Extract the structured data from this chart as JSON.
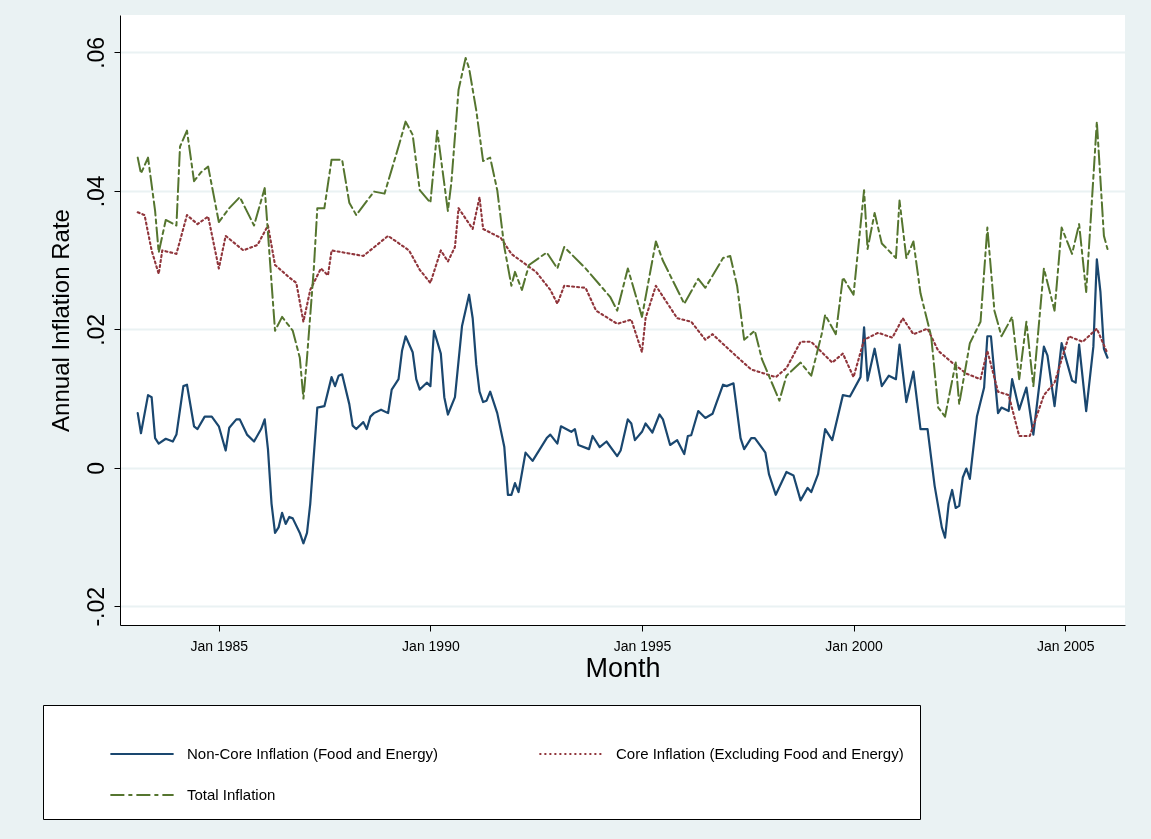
{
  "chart_data": {
    "type": "line",
    "xlabel": "Month",
    "ylabel": "Annual Inflation Rate",
    "xlim": [
      "1982-09",
      "2006-06"
    ],
    "ylim": [
      -0.0227,
      0.0654
    ],
    "xticks": [
      {
        "value": "1985-01",
        "label": "Jan 1985"
      },
      {
        "value": "1990-01",
        "label": "Jan 1990"
      },
      {
        "value": "1995-01",
        "label": "Jan 1995"
      },
      {
        "value": "2000-01",
        "label": "Jan 2000"
      },
      {
        "value": "2005-01",
        "label": "Jan 2005"
      }
    ],
    "yticks": [
      {
        "value": -0.02,
        "label": "-.02"
      },
      {
        "value": 0,
        "label": "0"
      },
      {
        "value": 0.02,
        "label": ".02"
      },
      {
        "value": 0.04,
        "label": ".04"
      },
      {
        "value": 0.06,
        "label": ".06"
      }
    ],
    "grid": "y",
    "legend": "bottom",
    "series": [
      {
        "name": "Non-Core Inflation (Food and Energy)",
        "color": "#1a476f",
        "line_style": "solid",
        "x": [
          "1983-02",
          "1983-03",
          "1983-05",
          "1983-06",
          "1983-07",
          "1983-08",
          "1983-10",
          "1983-12",
          "1984-01",
          "1984-03",
          "1984-04",
          "1984-06",
          "1984-07",
          "1984-09",
          "1984-11",
          "1985-01",
          "1985-03",
          "1985-04",
          "1985-06",
          "1985-07",
          "1985-09",
          "1985-11",
          "1986-01",
          "1986-02",
          "1986-03",
          "1986-04",
          "1986-05",
          "1986-06",
          "1986-07",
          "1986-08",
          "1986-09",
          "1986-10",
          "1986-12",
          "1987-01",
          "1987-02",
          "1987-03",
          "1987-05",
          "1987-07",
          "1987-09",
          "1987-10",
          "1987-11",
          "1987-12",
          "1988-02",
          "1988-03",
          "1988-04",
          "1988-06",
          "1988-07",
          "1988-08",
          "1988-09",
          "1988-11",
          "1989-01",
          "1989-02",
          "1989-04",
          "1989-05",
          "1989-06",
          "1989-08",
          "1989-09",
          "1989-10",
          "1989-12",
          "1990-01",
          "1990-02",
          "1990-04",
          "1990-05",
          "1990-06",
          "1990-08",
          "1990-10",
          "1990-12",
          "1991-01",
          "1991-02",
          "1991-03",
          "1991-04",
          "1991-05",
          "1991-06",
          "1991-08",
          "1991-10",
          "1991-11",
          "1991-12",
          "1992-01",
          "1992-02",
          "1992-04",
          "1992-06",
          "1992-10",
          "1992-11",
          "1993-01",
          "1993-02",
          "1993-05",
          "1993-06",
          "1993-07",
          "1993-10",
          "1993-11",
          "1994-01",
          "1994-03",
          "1994-06",
          "1994-07",
          "1994-09",
          "1994-10",
          "1994-11",
          "1995-01",
          "1995-02",
          "1995-04",
          "1995-06",
          "1995-07",
          "1995-09",
          "1995-11",
          "1996-01",
          "1996-02",
          "1996-03",
          "1996-05",
          "1996-07",
          "1996-09",
          "1996-10",
          "1996-12",
          "1997-01",
          "1997-03",
          "1997-05",
          "1997-06",
          "1997-08",
          "1997-09",
          "1997-12",
          "1998-01",
          "1998-03",
          "1998-06",
          "1998-08",
          "1998-10",
          "1998-12",
          "1999-01",
          "1999-03",
          "1999-05",
          "1999-07",
          "1999-10",
          "1999-12",
          "2000-03",
          "2000-04",
          "2000-05",
          "2000-07",
          "2000-09",
          "2000-11",
          "2001-01",
          "2001-02",
          "2001-04",
          "2001-06",
          "2001-08",
          "2001-10",
          "2001-12",
          "2002-02",
          "2002-03",
          "2002-04",
          "2002-05",
          "2002-06",
          "2002-07",
          "2002-08",
          "2002-09",
          "2002-10",
          "2002-12",
          "2003-02",
          "2003-03",
          "2003-04",
          "2003-06",
          "2003-07",
          "2003-09",
          "2003-10",
          "2003-12",
          "2004-02",
          "2004-04",
          "2004-07",
          "2004-08",
          "2004-10",
          "2004-12",
          "2005-03",
          "2005-04",
          "2005-05",
          "2005-07",
          "2005-09",
          "2005-10",
          "2005-11",
          "2005-12",
          "2006-01"
        ],
        "values": [
          0.0079,
          0.005,
          0.0105,
          0.0102,
          0.0043,
          0.0035,
          0.0042,
          0.0038,
          0.0048,
          0.0118,
          0.012,
          0.006,
          0.0056,
          0.0074,
          0.0074,
          0.006,
          0.0025,
          0.0058,
          0.007,
          0.007,
          0.0048,
          0.0038,
          0.0056,
          0.007,
          0.0027,
          -0.0052,
          -0.0094,
          -0.0086,
          -0.0065,
          -0.0081,
          -0.0071,
          -0.0073,
          -0.0094,
          -0.0109,
          -0.0094,
          -0.0052,
          0.0087,
          0.0089,
          0.0131,
          0.0118,
          0.0133,
          0.0135,
          0.0092,
          0.0061,
          0.0056,
          0.0066,
          0.0056,
          0.0074,
          0.0079,
          0.0084,
          0.0079,
          0.0113,
          0.0128,
          0.0169,
          0.019,
          0.0167,
          0.0128,
          0.0113,
          0.0123,
          0.0118,
          0.0198,
          0.0165,
          0.0102,
          0.0077,
          0.0102,
          0.0205,
          0.025,
          0.0216,
          0.0149,
          0.011,
          0.0095,
          0.0097,
          0.011,
          0.0079,
          0.003,
          -0.0039,
          -0.0039,
          -0.0022,
          -0.0035,
          0.0022,
          0.001,
          0.0043,
          0.0048,
          0.0035,
          0.006,
          0.0052,
          0.0056,
          0.0033,
          0.0027,
          0.0046,
          0.003,
          0.0038,
          0.0017,
          0.0025,
          0.007,
          0.0064,
          0.004,
          0.0052,
          0.0064,
          0.0051,
          0.0077,
          0.007,
          0.0033,
          0.004,
          0.002,
          0.0046,
          0.0047,
          0.0082,
          0.0072,
          0.0078,
          0.0092,
          0.012,
          0.0118,
          0.0122,
          0.0043,
          0.0027,
          0.0043,
          0.0043,
          0.0022,
          -0.0009,
          -0.0039,
          -0.0006,
          -0.0011,
          -0.0047,
          -0.0029,
          -0.0035,
          -0.0009,
          0.0056,
          0.004,
          0.0105,
          0.0103,
          0.0131,
          0.0203,
          0.0126,
          0.0172,
          0.0118,
          0.0133,
          0.0128,
          0.0178,
          0.0095,
          0.0139,
          0.0056,
          0.0056,
          -0.0026,
          -0.0086,
          -0.0101,
          -0.0052,
          -0.0032,
          -0.0058,
          -0.0055,
          -0.0014,
          -0.0001,
          -0.0016,
          0.0074,
          0.0116,
          0.019,
          0.019,
          0.0079,
          0.0087,
          0.0082,
          0.0128,
          0.0084,
          0.0116,
          0.0048,
          0.0175,
          0.0162,
          0.0089,
          0.018,
          0.0126,
          0.0123,
          0.0178,
          0.0082,
          0.0175,
          0.0301,
          0.0254,
          0.0172,
          0.0159
        ]
      },
      {
        "name": "Core Inflation (Excluding Food and Energy)",
        "color": "#90353b",
        "line_style": "dotted",
        "x": [
          "1983-02",
          "1983-04",
          "1983-06",
          "1983-08",
          "1983-09",
          "1984-01",
          "1984-04",
          "1984-07",
          "1984-10",
          "1985-01",
          "1985-03",
          "1985-08",
          "1985-12",
          "1986-03",
          "1986-05",
          "1986-09",
          "1986-11",
          "1987-01",
          "1987-03",
          "1987-06",
          "1987-08",
          "1987-09",
          "1988-06",
          "1989-01",
          "1989-07",
          "1989-10",
          "1990-01",
          "1990-04",
          "1990-06",
          "1990-08",
          "1990-09",
          "1991-01",
          "1991-03",
          "1991-04",
          "1991-09",
          "1991-12",
          "1992-07",
          "1992-11",
          "1993-01",
          "1993-03",
          "1993-09",
          "1993-12",
          "1994-06",
          "1994-10",
          "1995-01",
          "1995-02",
          "1995-05",
          "1995-11",
          "1996-03",
          "1996-07",
          "1996-09",
          "1997-03",
          "1997-08",
          "1998-03",
          "1998-06",
          "1998-10",
          "1999-01",
          "1999-07",
          "1999-10",
          "2000-01",
          "2000-04",
          "2000-08",
          "2000-12",
          "2001-03",
          "2001-06",
          "2001-10",
          "2002-01",
          "2002-05",
          "2002-09",
          "2003-01",
          "2003-03",
          "2003-06",
          "2003-09",
          "2003-12",
          "2004-03",
          "2004-07",
          "2004-10",
          "2005-02",
          "2005-06",
          "2005-10",
          "2006-01"
        ],
        "values": [
          0.0369,
          0.0365,
          0.0314,
          0.028,
          0.0314,
          0.0309,
          0.0365,
          0.0352,
          0.0363,
          0.0288,
          0.0335,
          0.0314,
          0.0322,
          0.035,
          0.0293,
          0.0275,
          0.0267,
          0.0211,
          0.0257,
          0.0288,
          0.0278,
          0.0314,
          0.0306,
          0.0335,
          0.0314,
          0.0286,
          0.0267,
          0.0314,
          0.0298,
          0.0319,
          0.0375,
          0.0345,
          0.0391,
          0.0345,
          0.0332,
          0.0309,
          0.0283,
          0.0257,
          0.0237,
          0.0263,
          0.026,
          0.0227,
          0.0208,
          0.0214,
          0.0167,
          0.0216,
          0.0263,
          0.0216,
          0.0211,
          0.0185,
          0.0193,
          0.0165,
          0.0142,
          0.0131,
          0.0144,
          0.0182,
          0.0182,
          0.0152,
          0.0165,
          0.0131,
          0.0185,
          0.0195,
          0.0188,
          0.0216,
          0.0193,
          0.0201,
          0.0169,
          0.0152,
          0.0136,
          0.0128,
          0.0169,
          0.011,
          0.0105,
          0.0046,
          0.0046,
          0.0105,
          0.0123,
          0.019,
          0.0182,
          0.0201,
          0.0165
        ]
      },
      {
        "name": "Total Inflation",
        "color": "#55752f",
        "line_style": "dashed",
        "x": [
          "1983-02",
          "1983-03",
          "1983-05",
          "1983-07",
          "1983-08",
          "1983-10",
          "1984-01",
          "1984-02",
          "1984-04",
          "1984-06",
          "1984-08",
          "1984-10",
          "1985-01",
          "1985-04",
          "1985-07",
          "1985-11",
          "1986-02",
          "1986-04",
          "1986-05",
          "1986-07",
          "1986-10",
          "1986-12",
          "1987-01",
          "1987-02",
          "1987-04",
          "1987-05",
          "1987-07",
          "1987-09",
          "1987-12",
          "1988-02",
          "1988-04",
          "1988-09",
          "1988-12",
          "1989-04",
          "1989-06",
          "1989-08",
          "1989-10",
          "1990-01",
          "1990-03",
          "1990-04",
          "1990-06",
          "1990-07",
          "1990-09",
          "1990-11",
          "1990-12",
          "1991-02",
          "1991-04",
          "1991-06",
          "1991-08",
          "1991-10",
          "1991-12",
          "1992-01",
          "1992-03",
          "1992-05",
          "1992-10",
          "1993-01",
          "1993-03",
          "1993-09",
          "1994-04",
          "1994-06",
          "1994-09",
          "1995-01",
          "1995-05",
          "1995-07",
          "1996-01",
          "1996-05",
          "1996-07",
          "1996-12",
          "1997-02",
          "1997-04",
          "1997-06",
          "1997-09",
          "1997-11",
          "1998-04",
          "1998-06",
          "1998-10",
          "1999-01",
          "1999-04",
          "1999-05",
          "1999-08",
          "1999-10",
          "2000-01",
          "2000-04",
          "2000-05",
          "2000-07",
          "2000-09",
          "2001-01",
          "2001-02",
          "2001-04",
          "2001-06",
          "2001-08",
          "2001-11",
          "2002-01",
          "2002-03",
          "2002-06",
          "2002-07",
          "2002-10",
          "2003-01",
          "2003-03",
          "2003-05",
          "2003-07",
          "2003-10",
          "2003-12",
          "2004-02",
          "2004-04",
          "2004-07",
          "2004-10",
          "2004-12",
          "2005-03",
          "2005-05",
          "2005-07",
          "2005-10",
          "2005-12",
          "2006-01"
        ],
        "values": [
          0.0448,
          0.0425,
          0.0448,
          0.0371,
          0.0311,
          0.0358,
          0.035,
          0.0464,
          0.0487,
          0.0414,
          0.0427,
          0.0435,
          0.0355,
          0.0375,
          0.0391,
          0.035,
          0.0404,
          0.0267,
          0.0198,
          0.0218,
          0.0198,
          0.0159,
          0.01,
          0.0159,
          0.0288,
          0.0375,
          0.0375,
          0.0445,
          0.0445,
          0.0383,
          0.0365,
          0.0399,
          0.0396,
          0.0464,
          0.05,
          0.0481,
          0.0401,
          0.0383,
          0.0487,
          0.0448,
          0.0371,
          0.0412,
          0.0546,
          0.0592,
          0.0577,
          0.0516,
          0.0443,
          0.0448,
          0.0401,
          0.0319,
          0.0263,
          0.0283,
          0.0257,
          0.0293,
          0.0311,
          0.0288,
          0.0319,
          0.0288,
          0.0247,
          0.0227,
          0.0288,
          0.0218,
          0.0327,
          0.0299,
          0.0237,
          0.0273,
          0.026,
          0.0303,
          0.0306,
          0.0263,
          0.0185,
          0.0198,
          0.0157,
          0.0097,
          0.0133,
          0.0152,
          0.0133,
          0.0193,
          0.0221,
          0.0193,
          0.0275,
          0.025,
          0.0401,
          0.0316,
          0.0368,
          0.0324,
          0.0303,
          0.0386,
          0.0303,
          0.0327,
          0.0252,
          0.019,
          0.0087,
          0.0074,
          0.0152,
          0.0092,
          0.018,
          0.0211,
          0.0347,
          0.0227,
          0.019,
          0.0218,
          0.0128,
          0.0211,
          0.0118,
          0.0288,
          0.0227,
          0.0347,
          0.0309,
          0.0352,
          0.0254,
          0.05,
          0.0335,
          0.0316
        ]
      }
    ]
  }
}
